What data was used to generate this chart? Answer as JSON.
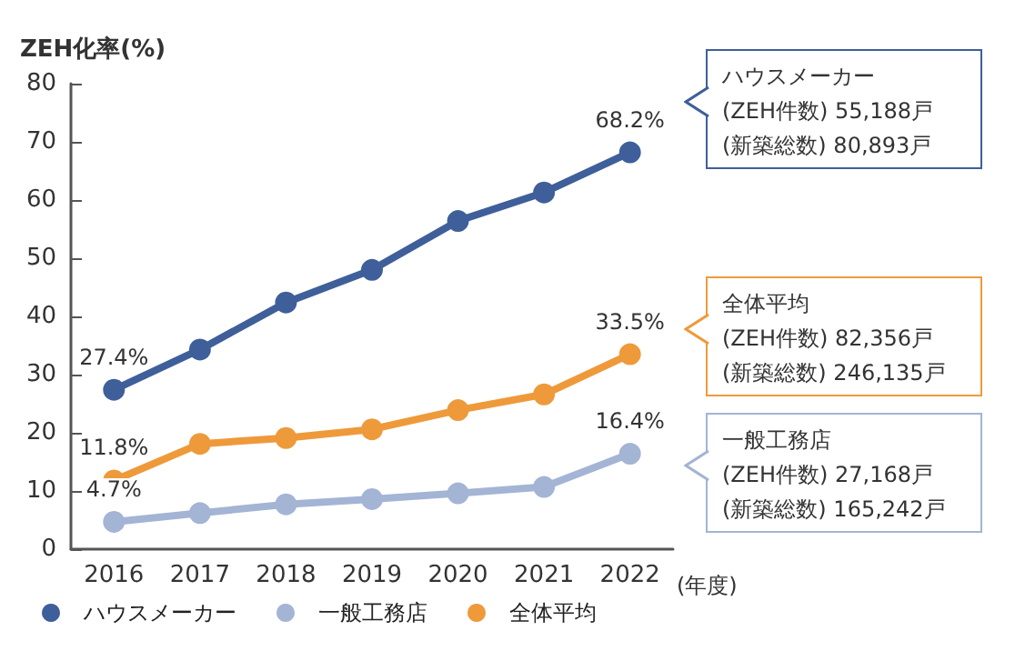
{
  "chart_data": {
    "type": "line",
    "ylabel": "ZEH化率(%)",
    "xlabel": "(年度)",
    "categories": [
      "2016",
      "2017",
      "2018",
      "2019",
      "2020",
      "2021",
      "2022"
    ],
    "series": [
      {
        "name": "ハウスメーカー",
        "color": "#3f5f9a",
        "values": [
          27.4,
          34.3,
          42.4,
          48.0,
          56.4,
          61.3,
          68.2
        ],
        "value_labels": [
          "27.4%",
          null,
          null,
          null,
          null,
          null,
          "68.2%"
        ]
      },
      {
        "name": "一般工務店",
        "color": "#a3b4d4",
        "values": [
          4.7,
          6.2,
          7.7,
          8.6,
          9.6,
          10.7,
          16.4
        ],
        "value_labels": [
          "4.7%",
          null,
          null,
          null,
          null,
          null,
          "16.4%"
        ]
      },
      {
        "name": "全体平均",
        "color": "#ee9a3a",
        "values": [
          11.8,
          18.1,
          19.1,
          20.6,
          23.9,
          26.6,
          33.5
        ],
        "value_labels": [
          "11.8%",
          null,
          null,
          null,
          null,
          null,
          "33.5%"
        ]
      }
    ],
    "ylim": [
      0,
      80
    ],
    "yticks": [
      0,
      10,
      20,
      30,
      40,
      50,
      60,
      70,
      80
    ],
    "grid": false,
    "legend": "bottom",
    "marker": "circle",
    "line_style": "solid",
    "annotations": [
      "ハウスメーカー\n(ZEH件数) 55,188戸\n(新築総数) 80,893戸",
      "全体平均\n(ZEH件数) 82,356戸\n(新築総数) 246,135戸",
      "一般工務店\n(ZEH件数) 27,168戸\n(新築総数) 165,242戸"
    ]
  }
}
